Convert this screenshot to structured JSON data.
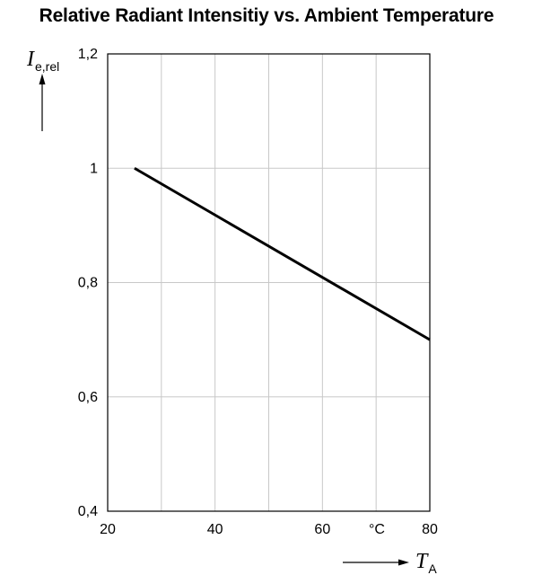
{
  "chart_data": {
    "type": "line",
    "title": "Relative Radiant Intensitiy vs. Ambient Temperature",
    "xlabel": {
      "symbol": "T",
      "subscript": "A",
      "unit": "°C"
    },
    "ylabel": {
      "symbol": "I",
      "subscript": "e,rel"
    },
    "xlim": [
      20,
      80
    ],
    "ylim": [
      0.4,
      1.2
    ],
    "x_ticks": [
      20,
      40,
      60,
      80
    ],
    "x_tick_labels": [
      "20",
      "40",
      "60",
      "80"
    ],
    "y_ticks": [
      0.4,
      0.6,
      0.8,
      1.0,
      1.2
    ],
    "y_tick_labels": [
      "0,4",
      "0,6",
      "0,8",
      "1",
      "1,2"
    ],
    "x_grid": [
      20,
      30,
      40,
      50,
      60,
      70,
      80
    ],
    "y_grid": [
      0.4,
      0.6,
      0.8,
      1.0,
      1.2
    ],
    "grid": true,
    "series": [
      {
        "x": [
          25,
          80
        ],
        "y": [
          1.0,
          0.7
        ]
      }
    ],
    "colors": {
      "line": "#000000",
      "grid": "#c8c8c8",
      "frame": "#000000"
    }
  }
}
